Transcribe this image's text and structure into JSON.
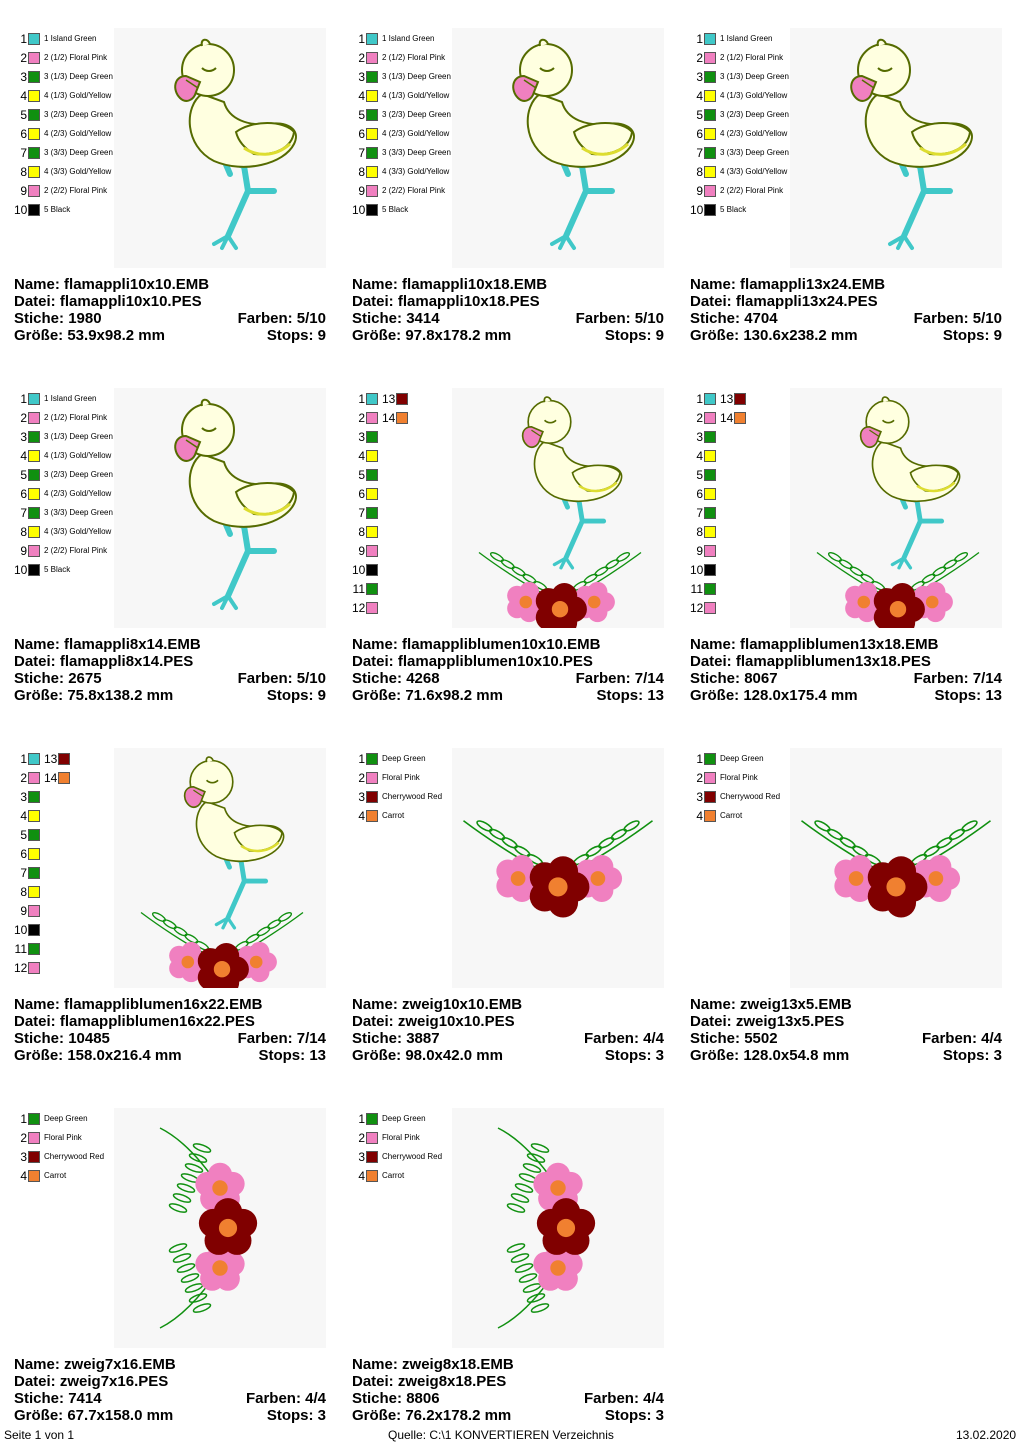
{
  "labels": {
    "name": "Name:",
    "datei": "Datei:",
    "stiche": "Stiche:",
    "groesse": "Größe:",
    "farben": "Farben:",
    "stops": "Stops:"
  },
  "colors": {
    "island_green": "#40c8c8",
    "floral_pink": "#f080c0",
    "deep_green": "#109010",
    "gold_yellow": "#ffff00",
    "black": "#000000",
    "cherrywood_red": "#800000",
    "carrot": "#f08030"
  },
  "designs": [
    {
      "name": "flamappli10x10.EMB",
      "datei": "flamappli10x10.PES",
      "stiche": "1980",
      "farben": "5/10",
      "groesse": "53.9x98.2 mm",
      "stops": "9",
      "art": "flamingo"
    },
    {
      "name": "flamappli10x18.EMB",
      "datei": "flamappli10x18.PES",
      "stiche": "3414",
      "farben": "5/10",
      "groesse": "97.8x178.2 mm",
      "stops": "9",
      "art": "flamingo"
    },
    {
      "name": "flamappli13x24.EMB",
      "datei": "flamappli13x24.PES",
      "stiche": "4704",
      "farben": "5/10",
      "groesse": "130.6x238.2 mm",
      "stops": "9",
      "art": "flamingo"
    },
    {
      "name": "flamappli8x14.EMB",
      "datei": "flamappli8x14.PES",
      "stiche": "2675",
      "farben": "5/10",
      "groesse": "75.8x138.2 mm",
      "stops": "9",
      "art": "flamingo"
    },
    {
      "name": "flamappliblumen10x10.EMB",
      "datei": "flamappliblumen10x10.PES",
      "stiche": "4268",
      "farben": "7/14",
      "groesse": "71.6x98.2 mm",
      "stops": "13",
      "art": "flamingo-flowers"
    },
    {
      "name": "flamappliblumen13x18.EMB",
      "datei": "flamappliblumen13x18.PES",
      "stiche": "8067",
      "farben": "7/14",
      "groesse": "128.0x175.4 mm",
      "stops": "13",
      "art": "flamingo-flowers"
    },
    {
      "name": "flamappliblumen16x22.EMB",
      "datei": "flamappliblumen16x22.PES",
      "stiche": "10485",
      "farben": "7/14",
      "groesse": "158.0x216.4 mm",
      "stops": "13",
      "art": "flamingo-flowers"
    },
    {
      "name": "zweig10x10.EMB",
      "datei": "zweig10x10.PES",
      "stiche": "3887",
      "farben": "4/4",
      "groesse": "98.0x42.0 mm",
      "stops": "3",
      "art": "branch"
    },
    {
      "name": "zweig13x5.EMB",
      "datei": "zweig13x5.PES",
      "stiche": "5502",
      "farben": "4/4",
      "groesse": "128.0x54.8 mm",
      "stops": "3",
      "art": "branch"
    },
    {
      "name": "zweig7x16.EMB",
      "datei": "zweig7x16.PES",
      "stiche": "7414",
      "farben": "4/4",
      "groesse": "67.7x158.0 mm",
      "stops": "3",
      "art": "branch-vertical"
    },
    {
      "name": "zweig8x18.EMB",
      "datei": "zweig8x18.PES",
      "stiche": "8806",
      "farben": "4/4",
      "groesse": "76.2x178.2 mm",
      "stops": "3",
      "art": "branch-vertical"
    }
  ],
  "color_lists": {
    "flamingo": [
      {
        "num": "1",
        "color": "#40c8c8",
        "label": "1 Island Green"
      },
      {
        "num": "2",
        "color": "#f080c0",
        "label": "2 (1/2) Floral Pink"
      },
      {
        "num": "3",
        "color": "#109010",
        "label": "3 (1/3) Deep Green"
      },
      {
        "num": "4",
        "color": "#ffff00",
        "label": "4 (1/3) Gold/Yellow"
      },
      {
        "num": "5",
        "color": "#109010",
        "label": "3 (2/3) Deep Green"
      },
      {
        "num": "6",
        "color": "#ffff00",
        "label": "4 (2/3) Gold/Yellow"
      },
      {
        "num": "7",
        "color": "#109010",
        "label": "3 (3/3) Deep Green"
      },
      {
        "num": "8",
        "color": "#ffff00",
        "label": "4 (3/3) Gold/Yellow"
      },
      {
        "num": "9",
        "color": "#f080c0",
        "label": "2 (2/2) Floral Pink"
      },
      {
        "num": "10",
        "color": "#000000",
        "label": "5 Black"
      }
    ],
    "flamingo-flowers": [
      {
        "num": "1",
        "color": "#40c8c8",
        "label": "13",
        "color2": "#800000"
      },
      {
        "num": "2",
        "color": "#f080c0",
        "label": "14",
        "color2": "#f08030"
      },
      {
        "num": "3",
        "color": "#109010",
        "label": ""
      },
      {
        "num": "4",
        "color": "#ffff00",
        "label": ""
      },
      {
        "num": "5",
        "color": "#109010",
        "label": ""
      },
      {
        "num": "6",
        "color": "#ffff00",
        "label": ""
      },
      {
        "num": "7",
        "color": "#109010",
        "label": ""
      },
      {
        "num": "8",
        "color": "#ffff00",
        "label": ""
      },
      {
        "num": "9",
        "color": "#f080c0",
        "label": ""
      },
      {
        "num": "10",
        "color": "#000000",
        "label": ""
      },
      {
        "num": "11",
        "color": "#109010",
        "label": ""
      },
      {
        "num": "12",
        "color": "#f080c0",
        "label": ""
      }
    ],
    "branch": [
      {
        "num": "1",
        "color": "#109010",
        "label": "Deep Green"
      },
      {
        "num": "2",
        "color": "#f080c0",
        "label": "Floral Pink"
      },
      {
        "num": "3",
        "color": "#800000",
        "label": "Cherrywood Red"
      },
      {
        "num": "4",
        "color": "#f08030",
        "label": "Carrot"
      }
    ]
  },
  "footer": {
    "page": "Seite 1 von 1",
    "source": "Quelle: C:\\1 KONVERTIEREN Verzeichnis",
    "date": "13.02.2020"
  }
}
